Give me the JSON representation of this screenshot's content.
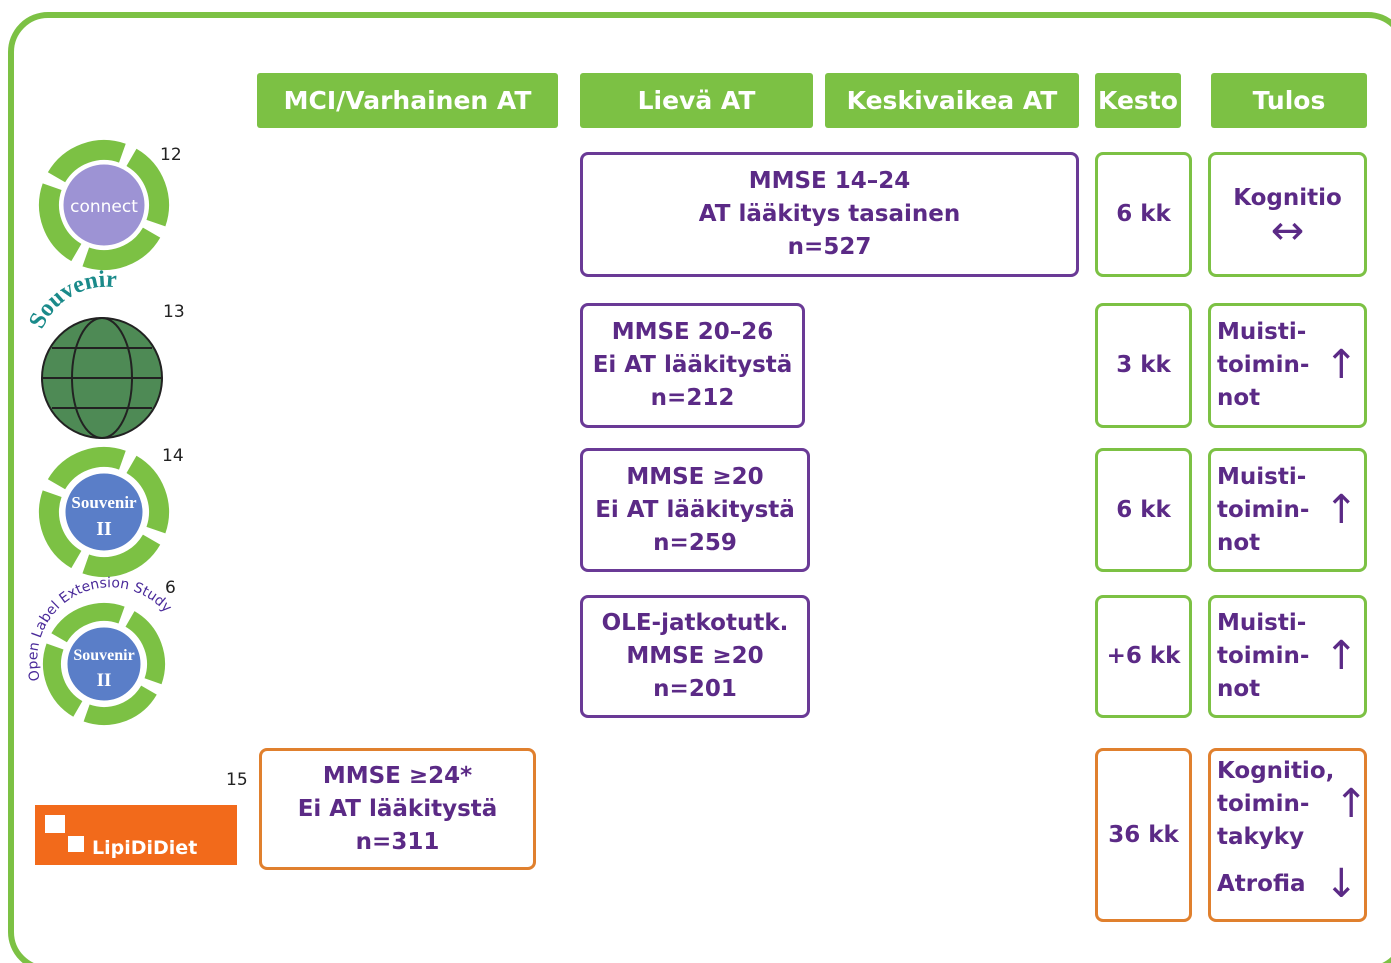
{
  "header": {
    "columns": [
      "MCI/Varhainen AT",
      "Lievä AT",
      "Keskivaikea AT",
      "Kesto",
      "Tulos"
    ]
  },
  "rows": [
    {
      "ref": "12",
      "logo": [
        "connect"
      ],
      "criteria": [
        "MMSE 14–24",
        "AT lääkitys tasainen",
        "n=527"
      ],
      "duration": "6 kk",
      "results": [
        {
          "lines": [
            "Kognitio"
          ],
          "arrow": "↔"
        }
      ]
    },
    {
      "ref": "13",
      "logo": [
        "Souvenir"
      ],
      "criteria": [
        "MMSE 20–26",
        "Ei AT lääkitystä",
        "n=212"
      ],
      "duration": "3 kk",
      "results": [
        {
          "lines": [
            "Muisti-",
            "toimin-",
            "not"
          ],
          "arrow": "↑"
        }
      ]
    },
    {
      "ref": "14",
      "logo": [
        "Souvenir",
        "II"
      ],
      "criteria": [
        "MMSE ≥20",
        "Ei AT lääkitystä",
        "n=259"
      ],
      "duration": "6 kk",
      "results": [
        {
          "lines": [
            "Muisti-",
            "toimin-",
            "not"
          ],
          "arrow": "↑"
        }
      ]
    },
    {
      "ref": "6",
      "logo": [
        "Open Label Extension Study",
        "Souvenir",
        "II"
      ],
      "criteria": [
        "OLE-jatkotutk.",
        "MMSE ≥20",
        "n=201"
      ],
      "duration": "+6 kk",
      "results": [
        {
          "lines": [
            "Muisti-",
            "toimin-",
            "not"
          ],
          "arrow": "↑"
        }
      ]
    },
    {
      "ref": "15",
      "logo": [
        "LipiDiDiet"
      ],
      "criteria": [
        "MMSE ≥24*",
        "Ei AT lääkitystä",
        "n=311"
      ],
      "duration": "36 kk",
      "results": [
        {
          "lines": [
            "Kognitio,",
            "toimin-",
            "takyky"
          ],
          "arrow": "↑"
        },
        {
          "lines": [
            "Atrofia"
          ],
          "arrow": "↓"
        }
      ]
    }
  ]
}
